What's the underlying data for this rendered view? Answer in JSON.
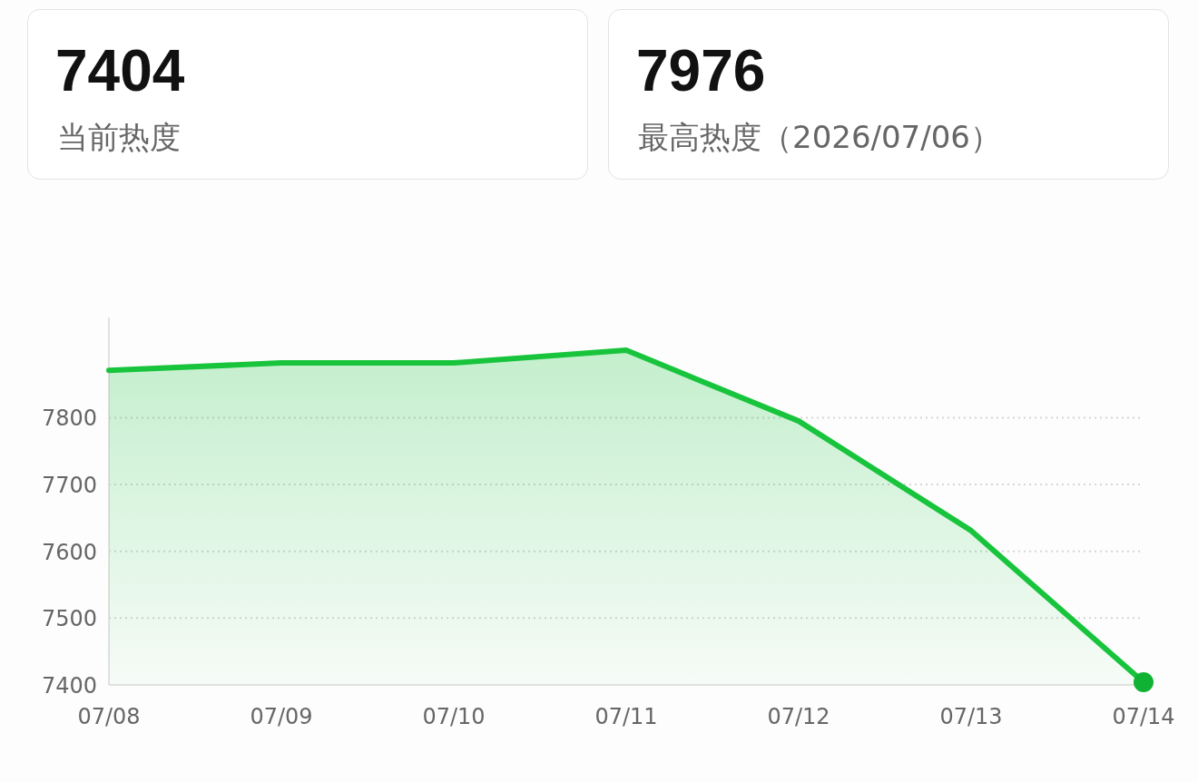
{
  "chart_data": [
    {
      "type": "other",
      "title": "7404",
      "subtitle": "当前热度"
    },
    {
      "type": "other",
      "title": "7976",
      "subtitle": "最高热度（2026/07/06）"
    },
    {
      "type": "area",
      "categories": [
        "07/08",
        "07/09",
        "07/10",
        "07/11",
        "07/12",
        "07/13",
        "07/14"
      ],
      "series": [
        {
          "color": "#18c43c",
          "values": [
            7871,
            7882,
            7882,
            7901,
            7795,
            7631,
            7404
          ]
        },
        {
          "type": "scatter",
          "color": "#10b233",
          "x": [
            "07/14"
          ],
          "values": [
            7404
          ]
        }
      ],
      "ylim": [
        7400,
        7950
      ],
      "yticks": [
        7400,
        7500,
        7600,
        7700,
        7800
      ],
      "grid": "y"
    }
  ]
}
